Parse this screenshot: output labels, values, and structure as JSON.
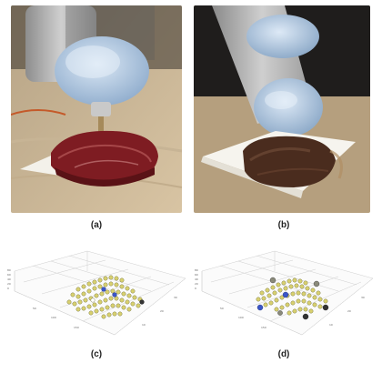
{
  "figure": {
    "panels": [
      {
        "id": "a",
        "caption": "(a)",
        "content": "robot-arm-probe-raw-meat-photo"
      },
      {
        "id": "b",
        "caption": "(b)",
        "content": "robot-arm-probe-cooked-meat-photo"
      },
      {
        "id": "c",
        "caption": "(c)",
        "content": "3d-point-cloud-raw"
      },
      {
        "id": "d",
        "caption": "(d)",
        "content": "3d-point-cloud-cooked"
      }
    ]
  },
  "colors": {
    "points": "#d8d070",
    "point_outline": "#6a6a30",
    "highlight_blue": "#3a56c8",
    "highlight_dark": "#333333",
    "grid": "#c8c8c8"
  }
}
